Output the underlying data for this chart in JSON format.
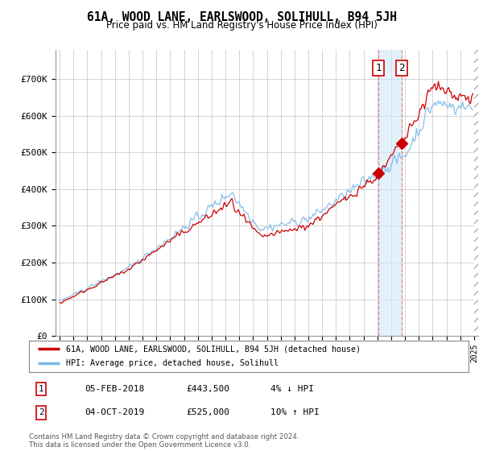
{
  "title": "61A, WOOD LANE, EARLSWOOD, SOLIHULL, B94 5JH",
  "subtitle": "Price paid vs. HM Land Registry's House Price Index (HPI)",
  "legend_line1": "61A, WOOD LANE, EARLSWOOD, SOLIHULL, B94 5JH (detached house)",
  "legend_line2": "HPI: Average price, detached house, Solihull",
  "footnote": "Contains HM Land Registry data © Crown copyright and database right 2024.\nThis data is licensed under the Open Government Licence v3.0.",
  "annotation1_date": "05-FEB-2018",
  "annotation1_price": "£443,500",
  "annotation1_pct": "4% ↓ HPI",
  "annotation2_date": "04-OCT-2019",
  "annotation2_price": "£525,000",
  "annotation2_pct": "10% ↑ HPI",
  "sale1_x": 2018.09,
  "sale1_y": 443500,
  "sale2_x": 2019.75,
  "sale2_y": 525000,
  "hpi_color": "#7ab8e8",
  "price_color": "#cc0000",
  "annotation_box_color": "#cc0000",
  "background_color": "#ffffff",
  "grid_color": "#cccccc",
  "ylim": [
    0,
    780000
  ],
  "xlim": [
    1994.7,
    2025.3
  ],
  "yticks": [
    0,
    100000,
    200000,
    300000,
    400000,
    500000,
    600000,
    700000
  ],
  "ytick_labels": [
    "£0",
    "£100K",
    "£200K",
    "£300K",
    "£400K",
    "£500K",
    "£600K",
    "£700K"
  ],
  "xticks": [
    1995,
    1996,
    1997,
    1998,
    1999,
    2000,
    2001,
    2002,
    2003,
    2004,
    2005,
    2006,
    2007,
    2008,
    2009,
    2010,
    2011,
    2012,
    2013,
    2014,
    2015,
    2016,
    2017,
    2018,
    2019,
    2020,
    2021,
    2022,
    2023,
    2024,
    2025
  ],
  "shade_x1": 2018.09,
  "shade_x2": 2019.75,
  "hatch_x": 2025.0
}
